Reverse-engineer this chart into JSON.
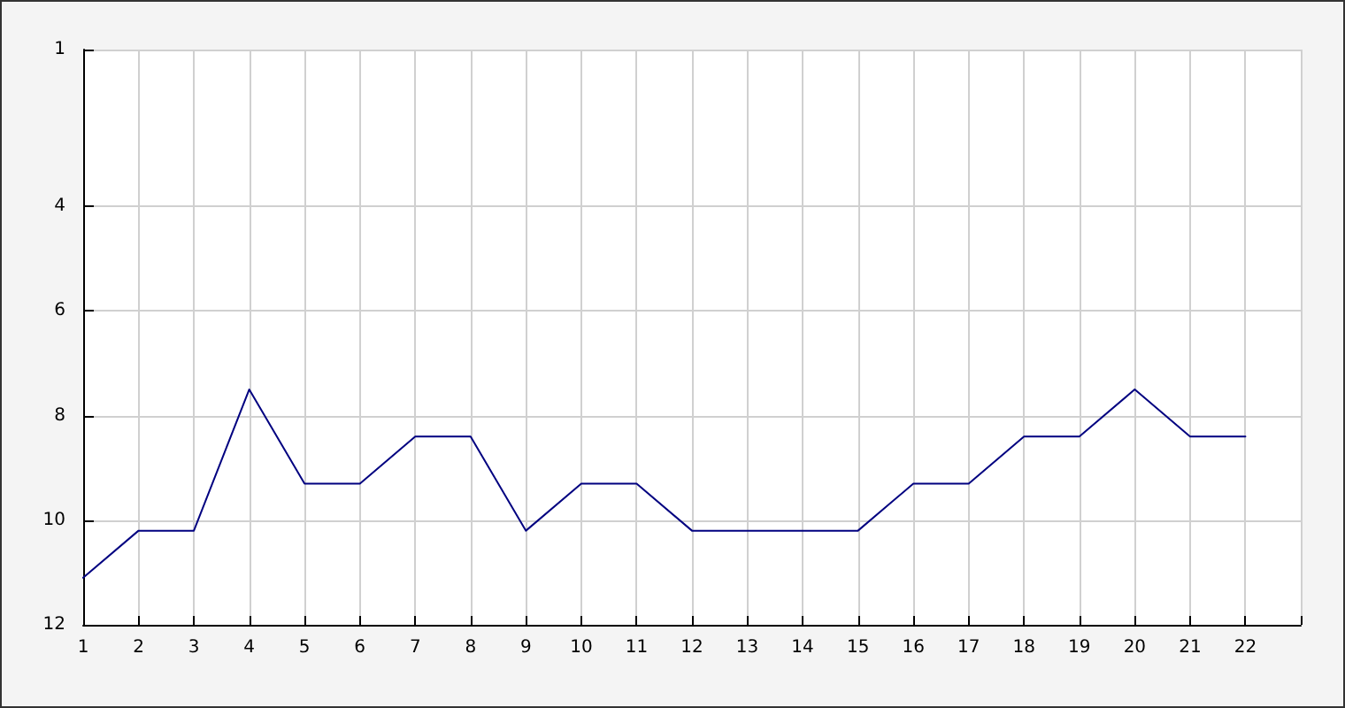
{
  "chart_data": {
    "type": "line",
    "x": [
      1,
      2,
      3,
      4,
      5,
      6,
      7,
      8,
      9,
      10,
      11,
      12,
      13,
      14,
      15,
      16,
      17,
      18,
      19,
      20,
      21,
      22
    ],
    "series": [
      {
        "color": "#000080",
        "values": [
          11.1,
          10.2,
          10.2,
          7.5,
          9.3,
          9.3,
          8.4,
          8.4,
          10.2,
          9.3,
          9.3,
          10.2,
          10.2,
          10.2,
          10.2,
          9.3,
          9.3,
          8.4,
          8.4,
          7.5,
          8.4,
          8.4
        ]
      }
    ],
    "xlim": [
      1,
      23
    ],
    "xticks": [
      1,
      2,
      3,
      4,
      5,
      6,
      7,
      8,
      9,
      10,
      11,
      12,
      13,
      14,
      15,
      16,
      17,
      18,
      19,
      20,
      21,
      22,
      {
        "value": 23,
        "label": null
      }
    ],
    "ylim": [
      12,
      1
    ],
    "yticks": [
      1,
      4,
      6,
      8,
      10,
      12
    ],
    "grid": true,
    "marker": "none",
    "line_style": "solid"
  }
}
